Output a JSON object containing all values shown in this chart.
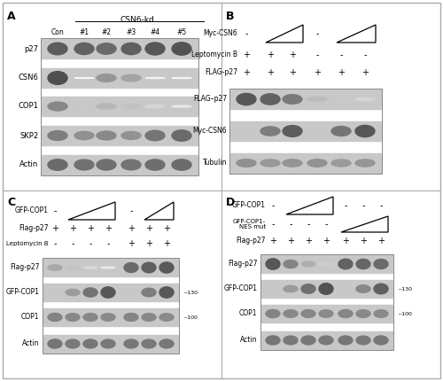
{
  "figure_bg": "#ffffff",
  "blot_bg": "#c8c8c8",
  "blot_bg_dark": "#b8b8b8",
  "band_dark": "#404040",
  "band_mid": "#686868",
  "band_light": "#909090",
  "text_color": "#111111",
  "border_color": "#999999",
  "panel_A": {
    "label": "A",
    "title": "CSN6-kd",
    "col_labels": [
      "Con",
      "#1",
      "#2",
      "#3",
      "#4",
      "#5"
    ],
    "row_labels": [
      "p27",
      "CSN6",
      "COP1",
      "SKP2",
      "Actin"
    ]
  },
  "panel_B": {
    "label": "B",
    "cond_labels": [
      "Myc-CSN6",
      "Leptomycin B",
      "FLAG-p27"
    ],
    "blot_labels": [
      "FLAG–p27",
      "Myc-CSN6",
      "Tubulin"
    ]
  },
  "panel_C": {
    "label": "C",
    "cond_labels": [
      "GFP-COP1",
      "Flag-p27",
      "Leptomycin B"
    ],
    "blot_labels": [
      "Flag-p27",
      "GFP-COP1",
      "COP1",
      "Actin"
    ],
    "markers": [
      [
        "GFP-COP1",
        "~130"
      ],
      [
        "COP1",
        "~100"
      ]
    ]
  },
  "panel_D": {
    "label": "D",
    "cond_labels": [
      "GFP-COP1",
      "GFP-COP1-\nNES mut",
      "Flag-p27"
    ],
    "blot_labels": [
      "Flag-p27",
      "GFP-COP1",
      "COP1",
      "Actin"
    ],
    "markers": [
      [
        "GFP-COP1",
        "~130"
      ],
      [
        "COP1",
        "~100"
      ]
    ]
  }
}
